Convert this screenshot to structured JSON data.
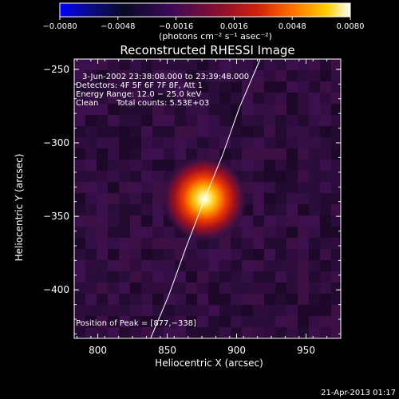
{
  "chart_data": {
    "type": "heatmap",
    "title": "Reconstructed RHESSI Image",
    "xlabel": "Heliocentric X (arcsec)",
    "ylabel": "Heliocentric Y (arcsec)",
    "xlim": [
      783,
      975
    ],
    "ylim": [
      -433,
      -243
    ],
    "x_ticks": [
      800,
      850,
      900,
      950
    ],
    "y_ticks": [
      -250,
      -300,
      -350,
      -400
    ],
    "x_tick_labels": [
      "800",
      "850",
      "900",
      "950"
    ],
    "y_tick_labels": [
      "−250",
      "−300",
      "−350",
      "−400"
    ],
    "colorbar": {
      "range": [
        -0.008,
        0.008
      ],
      "ticks": [
        -0.008,
        -0.0048,
        -0.0016,
        0.0016,
        0.0048,
        0.008
      ],
      "tick_labels": [
        "−0.0080",
        "−0.0048",
        "−0.0016",
        "0.0016",
        "0.0048",
        "0.0080"
      ],
      "units_label": "(photons cm⁻² s⁻¹ asec⁻²)",
      "colormap": [
        "#0000ff",
        "#000020",
        "#3a0a5a",
        "#b01018",
        "#ff6000",
        "#ffd000",
        "#ffffff"
      ]
    },
    "annotations": {
      "time_range": "3-Jun-2002 23:38:08.000 to 23:39:48.000",
      "detectors": "Detectors: 4F 5F 6F 7F 8F, Att 1",
      "energy_range": "Energy Range: 12.0 − 25.0 keV",
      "clean_label": "Clean",
      "total_counts": "Total counts: 5.53E+03",
      "peak_position": "Position of Peak = [877,−338]"
    },
    "source": {
      "peak_x": 877,
      "peak_y": -338,
      "peak_value": 0.008
    },
    "limb_curve": {
      "points": [
        [
          838,
          -433
        ],
        [
          851,
          -404
        ],
        [
          864,
          -370
        ],
        [
          877,
          -338
        ],
        [
          890,
          -308
        ],
        [
          902,
          -276
        ],
        [
          917,
          -243
        ]
      ]
    },
    "footer_date": "21-Apr-2013 01:17"
  }
}
